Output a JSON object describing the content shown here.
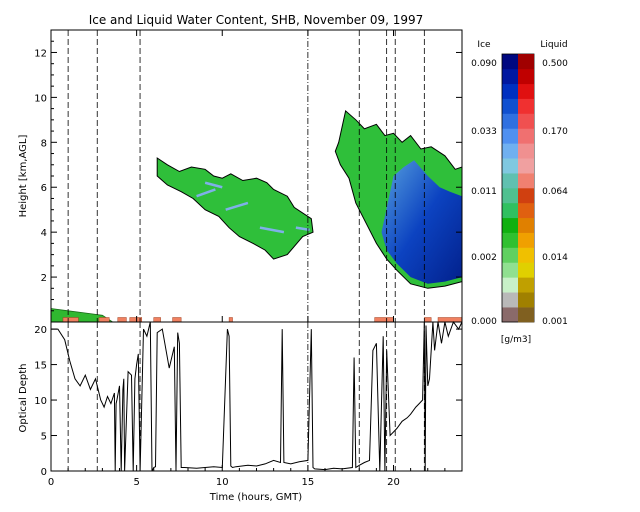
{
  "chart_data": [
    {
      "type": "heatmap",
      "title": "Ice and Liquid Water Content, SHB, November 09, 1997",
      "ylabel": "Height [km,AGL]",
      "xlim": [
        0,
        24
      ],
      "ylim": [
        0,
        13
      ],
      "yticks": [
        2,
        4,
        6,
        8,
        10,
        12
      ],
      "xticks": [
        0,
        5,
        10,
        15,
        20
      ],
      "colorbar": {
        "ice_label": "Ice",
        "liquid_label": "Liquid",
        "units": "[g/m3]",
        "ice_ticks": [
          "0.090",
          "0.033",
          "0.011",
          "0.002",
          "0.000"
        ],
        "liquid_ticks": [
          "0.500",
          "0.170",
          "0.064",
          "0.014",
          "0.001"
        ],
        "ice_colors": [
          "#8a6a6a",
          "#b9b9b9",
          "#c8f0c8",
          "#90e090",
          "#60d060",
          "#30c030",
          "#10b010",
          "#30c060",
          "#50c090",
          "#60c0b0",
          "#80c8e0",
          "#70b0f0",
          "#5090f0",
          "#3070e0",
          "#1050d0",
          "#0030c0",
          "#0018a0",
          "#000880"
        ],
        "liquid_colors": [
          "#806020",
          "#a08000",
          "#c0a000",
          "#e0d000",
          "#f0c000",
          "#f0a000",
          "#e08000",
          "#e06010",
          "#d04010",
          "#f08070",
          "#f0a0a0",
          "#f09090",
          "#f07070",
          "#f05050",
          "#f03030",
          "#e01010",
          "#c00000",
          "#a00000"
        ]
      },
      "ice_cloud_regions": [
        {
          "name": "cloud-6-9h",
          "polygon": [
            [
              6.2,
              7.3
            ],
            [
              6.8,
              7.0
            ],
            [
              7.5,
              6.7
            ],
            [
              8.2,
              6.9
            ],
            [
              9.0,
              6.8
            ],
            [
              9.5,
              6.5
            ],
            [
              10.0,
              6.4
            ],
            [
              10.5,
              6.6
            ],
            [
              11.2,
              6.3
            ],
            [
              12.0,
              6.4
            ],
            [
              12.6,
              6.2
            ],
            [
              13.0,
              5.9
            ],
            [
              13.8,
              5.6
            ],
            [
              14.2,
              5.1
            ],
            [
              15.2,
              4.6
            ],
            [
              15.3,
              4.0
            ],
            [
              14.7,
              3.8
            ],
            [
              13.8,
              3.0
            ],
            [
              13.0,
              2.8
            ],
            [
              12.5,
              3.2
            ],
            [
              11.8,
              3.5
            ],
            [
              11.0,
              3.8
            ],
            [
              10.4,
              4.2
            ],
            [
              9.8,
              4.7
            ],
            [
              9.0,
              5.0
            ],
            [
              8.3,
              5.5
            ],
            [
              7.6,
              5.8
            ],
            [
              6.8,
              6.1
            ],
            [
              6.2,
              6.5
            ]
          ]
        },
        {
          "name": "cloud-17-24h",
          "polygon": [
            [
              16.8,
              8.0
            ],
            [
              17.2,
              9.4
            ],
            [
              17.8,
              9.0
            ],
            [
              18.3,
              8.6
            ],
            [
              19.0,
              8.8
            ],
            [
              19.5,
              8.3
            ],
            [
              20.0,
              8.4
            ],
            [
              20.5,
              8.0
            ],
            [
              21.0,
              8.3
            ],
            [
              21.6,
              7.7
            ],
            [
              22.2,
              7.8
            ],
            [
              23.0,
              7.4
            ],
            [
              23.6,
              6.8
            ],
            [
              24.0,
              6.9
            ],
            [
              24.0,
              1.8
            ],
            [
              23.0,
              1.6
            ],
            [
              22.0,
              1.5
            ],
            [
              21.0,
              1.7
            ],
            [
              20.2,
              2.3
            ],
            [
              19.6,
              2.8
            ],
            [
              19.0,
              3.5
            ],
            [
              18.4,
              4.4
            ],
            [
              17.8,
              5.3
            ],
            [
              17.4,
              6.4
            ],
            [
              16.9,
              7.0
            ],
            [
              16.6,
              7.6
            ]
          ]
        }
      ],
      "ice_dense_regions": [
        {
          "name": "dense-core",
          "polygon": [
            [
              19.3,
              4.0
            ],
            [
              20.0,
              6.5
            ],
            [
              20.6,
              6.9
            ],
            [
              21.2,
              7.2
            ],
            [
              22.0,
              6.5
            ],
            [
              22.7,
              6.0
            ],
            [
              23.3,
              5.8
            ],
            [
              24.0,
              5.6
            ],
            [
              24.0,
              2.0
            ],
            [
              23.0,
              1.8
            ],
            [
              22.0,
              1.7
            ],
            [
              21.0,
              2.0
            ],
            [
              20.2,
              2.6
            ],
            [
              19.6,
              3.2
            ]
          ]
        }
      ],
      "surface_layer": [
        [
          0.0,
          0.6
        ],
        [
          1.0,
          0.5
        ],
        [
          2.0,
          0.4
        ],
        [
          3.0,
          0.3
        ],
        [
          3.6,
          0.0
        ]
      ],
      "liquid_patches": [
        [
          0.7,
          1.6
        ],
        [
          2.8,
          3.4
        ],
        [
          3.9,
          4.4
        ],
        [
          4.6,
          5.3
        ],
        [
          6.0,
          6.4
        ],
        [
          7.1,
          7.6
        ],
        [
          10.4,
          10.6
        ],
        [
          18.9,
          20.0
        ],
        [
          21.8,
          22.2
        ],
        [
          22.6,
          24.0
        ]
      ],
      "event_lines_x": [
        1.0,
        2.7,
        5.2,
        15.0,
        18.0,
        19.6,
        20.1,
        21.8
      ]
    },
    {
      "type": "line",
      "ylabel": "Optical Depth",
      "xlabel": "Time (hours, GMT)",
      "xlim": [
        0,
        24
      ],
      "ylim": [
        0,
        21
      ],
      "yticks": [
        0,
        5,
        10,
        15,
        20
      ],
      "xticks": [
        0,
        5,
        10,
        15,
        20
      ],
      "series": [
        {
          "x": [
            0.0,
            0.4,
            0.8,
            1.1,
            1.4,
            1.7,
            2.0,
            2.3,
            2.6,
            2.9,
            3.1,
            3.3,
            3.5,
            3.7,
            3.75,
            3.8,
            3.85,
            4.0,
            4.1,
            4.2,
            4.25,
            4.3,
            4.5,
            4.7,
            4.8,
            4.9,
            5.0,
            5.1,
            5.2,
            5.4,
            5.6,
            5.8,
            5.9,
            6.0,
            6.1,
            6.2,
            6.5,
            6.9,
            7.2,
            7.3,
            7.4,
            7.5,
            7.6,
            7.8,
            8.5,
            9.0,
            9.5,
            10.0,
            10.3,
            10.4,
            10.5,
            10.6,
            10.8,
            11.5,
            12.0,
            12.5,
            13.0,
            13.4,
            13.5,
            13.6,
            14.0,
            14.5,
            15.0,
            15.2,
            15.3,
            15.4,
            16.0,
            16.5,
            17.0,
            17.6,
            17.7,
            17.8,
            18.0,
            18.3,
            18.6,
            18.8,
            19.0,
            19.2,
            19.4,
            19.5,
            19.6,
            19.8,
            20.0,
            20.2,
            20.5,
            20.8,
            21.0,
            21.3,
            21.5,
            21.7,
            21.8,
            21.85,
            21.9,
            22.0,
            22.1,
            22.3,
            22.4,
            22.6,
            22.8,
            23.0,
            23.2,
            23.5,
            23.8,
            24.0
          ],
          "y": [
            20.0,
            20.0,
            18.5,
            15.5,
            13.0,
            12.0,
            13.5,
            11.5,
            13.0,
            10.0,
            9.0,
            10.5,
            9.5,
            11.0,
            0.0,
            9.5,
            10.0,
            12.0,
            0.0,
            11.5,
            13.0,
            0.0,
            14.0,
            13.5,
            0.0,
            13.0,
            15.0,
            16.5,
            0.0,
            20.0,
            19.0,
            21.0,
            0.0,
            0.5,
            0.6,
            19.5,
            20.0,
            14.5,
            17.5,
            0.0,
            19.5,
            18.0,
            0.5,
            0.5,
            0.4,
            0.5,
            0.6,
            0.5,
            20.0,
            19.0,
            0.7,
            0.5,
            0.6,
            0.8,
            0.7,
            1.0,
            1.5,
            1.2,
            20.0,
            1.2,
            1.0,
            1.3,
            1.5,
            20.0,
            0.5,
            0.3,
            0.2,
            0.4,
            0.3,
            0.5,
            16.0,
            0.5,
            0.8,
            1.2,
            1.5,
            17.0,
            18.0,
            0.0,
            19.0,
            0.0,
            17.0,
            5.0,
            5.5,
            6.0,
            7.0,
            7.5,
            8.0,
            9.0,
            9.5,
            10.0,
            21.0,
            0.0,
            20.5,
            12.0,
            13.0,
            21.0,
            17.0,
            21.0,
            18.0,
            21.0,
            19.0,
            21.0,
            20.0,
            21.0
          ]
        }
      ],
      "event_lines_x": [
        1.0,
        2.7,
        5.2,
        15.0,
        18.0,
        19.6,
        20.1,
        21.8
      ]
    }
  ]
}
